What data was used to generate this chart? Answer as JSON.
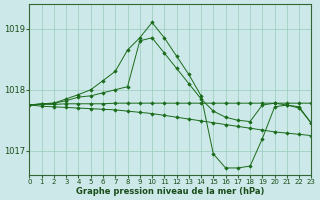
{
  "bg_color": "#cce8e8",
  "grid_color": "#99ccbb",
  "line_color": "#1a6b1a",
  "marker_color": "#1a6b1a",
  "title": "Graphe pression niveau de la mer (hPa)",
  "xlim": [
    0,
    23
  ],
  "ylim": [
    1016.6,
    1019.4
  ],
  "yticks": [
    1017,
    1018,
    1019
  ],
  "xticks": [
    0,
    1,
    2,
    3,
    4,
    5,
    6,
    7,
    8,
    9,
    10,
    11,
    12,
    13,
    14,
    15,
    16,
    17,
    18,
    19,
    20,
    21,
    22,
    23
  ],
  "series": [
    {
      "x": [
        0,
        1,
        2,
        3,
        4,
        5,
        6,
        7,
        8,
        9,
        10,
        11,
        12,
        13,
        14,
        15,
        16,
        17,
        18,
        19,
        20,
        21,
        22,
        23
      ],
      "y": [
        1017.75,
        1017.73,
        1017.72,
        1017.71,
        1017.7,
        1017.69,
        1017.68,
        1017.67,
        1017.65,
        1017.63,
        1017.61,
        1017.58,
        1017.55,
        1017.52,
        1017.49,
        1017.46,
        1017.43,
        1017.4,
        1017.37,
        1017.34,
        1017.31,
        1017.29,
        1017.27,
        1017.25
      ]
    },
    {
      "x": [
        0,
        1,
        2,
        3,
        4,
        5,
        6,
        7,
        8,
        9,
        10,
        11,
        12,
        13,
        14,
        15,
        16,
        17,
        18,
        19,
        20,
        21,
        22,
        23
      ],
      "y": [
        1017.75,
        1017.76,
        1017.76,
        1017.77,
        1017.77,
        1017.77,
        1017.77,
        1017.78,
        1017.78,
        1017.78,
        1017.78,
        1017.78,
        1017.78,
        1017.78,
        1017.78,
        1017.78,
        1017.78,
        1017.78,
        1017.78,
        1017.78,
        1017.78,
        1017.78,
        1017.78,
        1017.78
      ]
    },
    {
      "x": [
        0,
        1,
        2,
        3,
        4,
        5,
        6,
        7,
        8,
        9,
        10,
        11,
        12,
        13,
        14,
        15,
        16,
        17,
        18,
        19,
        20,
        21,
        22,
        23
      ],
      "y": [
        1017.75,
        1017.77,
        1017.78,
        1017.82,
        1017.88,
        1017.9,
        1017.95,
        1018.0,
        1018.05,
        1018.8,
        1018.85,
        1018.6,
        1018.35,
        1018.1,
        1017.85,
        1017.65,
        1017.55,
        1017.5,
        1017.48,
        1017.75,
        1017.78,
        1017.75,
        1017.72,
        1017.45
      ]
    },
    {
      "x": [
        0,
        1,
        2,
        3,
        4,
        5,
        6,
        7,
        8,
        9,
        10,
        11,
        12,
        13,
        14,
        15,
        16,
        17,
        18,
        19,
        20,
        21,
        22,
        23
      ],
      "y": [
        1017.75,
        1017.77,
        1017.78,
        1017.85,
        1017.92,
        1018.0,
        1018.15,
        1018.3,
        1018.65,
        1018.85,
        1019.1,
        1018.85,
        1018.55,
        1018.25,
        1017.9,
        1016.95,
        1016.72,
        1016.72,
        1016.75,
        1017.2,
        1017.72,
        1017.75,
        1017.7,
        1017.45
      ]
    }
  ]
}
